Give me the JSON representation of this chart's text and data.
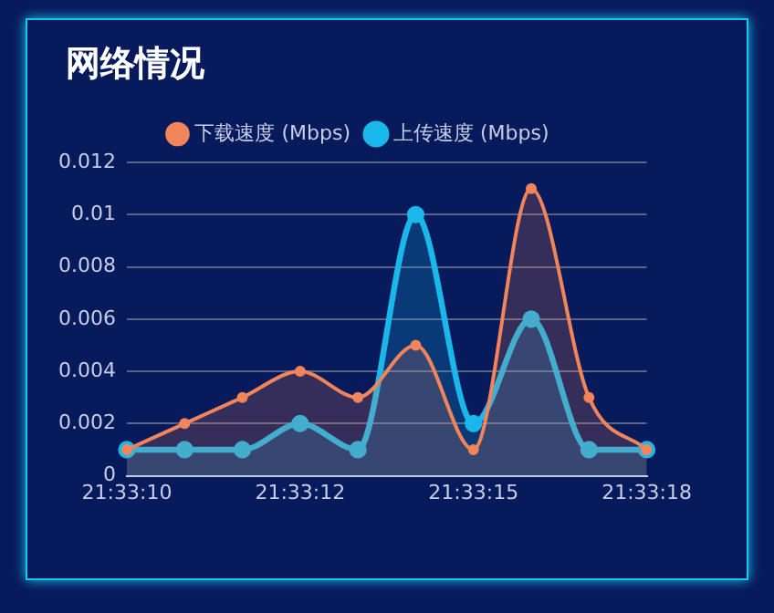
{
  "chart_data": {
    "type": "area",
    "title": "网络情况",
    "categories": [
      "21:33:10",
      null,
      null,
      "21:33:12",
      null,
      null,
      "21:33:15",
      null,
      null,
      "21:33:18"
    ],
    "series": [
      {
        "name": "上传速度 (Mbps)",
        "color": "#1ab8ea",
        "values": [
          0.001,
          0.001,
          0.001,
          0.002,
          0.001,
          0.01,
          0.002,
          0.006,
          0.001,
          0.001
        ]
      },
      {
        "name": "下载速度 (Mbps)",
        "color": "#f0845a",
        "values": [
          0.001,
          0.002,
          0.003,
          0.004,
          0.003,
          0.005,
          0.001,
          0.011,
          0.003,
          0.001
        ]
      }
    ],
    "ylim": [
      0,
      0.012
    ],
    "yticks": [
      0,
      0.002,
      0.004,
      0.006,
      0.008,
      0.01,
      0.012
    ],
    "grid": "y",
    "legend": "top",
    "marker": "circle"
  }
}
